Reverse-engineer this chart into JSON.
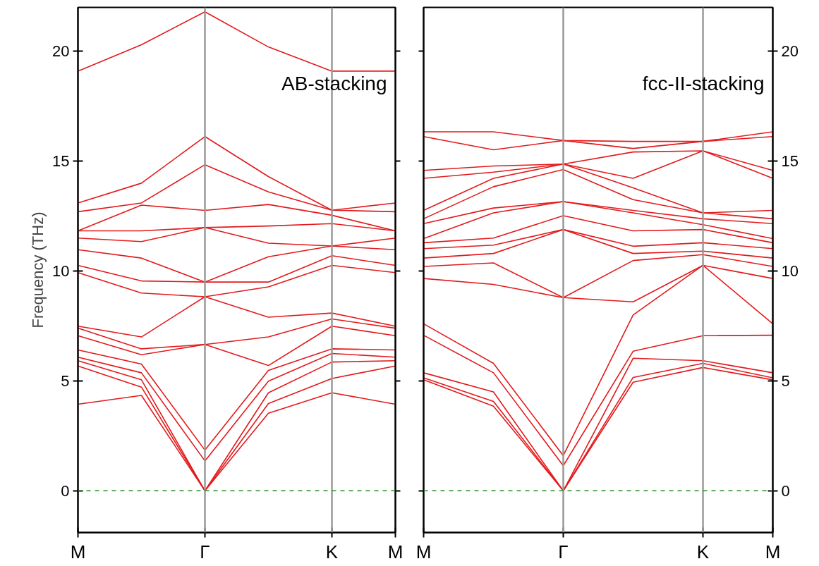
{
  "chart_data": [
    {
      "type": "line",
      "ylabel": "Frequency (THz)",
      "annotations": [
        "AB-stacking"
      ],
      "categories": [
        "M",
        null,
        "Γ",
        null,
        "K",
        "M"
      ],
      "ylim": [
        -1.9,
        22
      ],
      "yticks": [
        0,
        5,
        10,
        15,
        20
      ],
      "line_style": "solid",
      "ref_lines": [
        {
          "axis": "x",
          "value": "Γ",
          "color": "#999999",
          "line_style": "solid"
        },
        {
          "axis": "x",
          "value": "K",
          "color": "#999999",
          "line_style": "solid"
        },
        {
          "axis": "y",
          "value": 0,
          "color": "#228b22",
          "line_style": "dashed"
        }
      ],
      "series": [
        {
          "color": "#e31a1c",
          "values": [
            3.94,
            4.34,
            0,
            3.53,
            4.46,
            3.94
          ]
        },
        {
          "color": "#e31a1c",
          "values": [
            5.68,
            4.72,
            0,
            3.97,
            5.11,
            5.68
          ]
        },
        {
          "color": "#e31a1c",
          "values": [
            5.92,
            5.05,
            0,
            4.46,
            5.86,
            5.92
          ]
        },
        {
          "color": "#e31a1c",
          "values": [
            6.08,
            5.37,
            1.36,
            4.99,
            6.25,
            6.08
          ]
        },
        {
          "color": "#e31a1c",
          "values": [
            6.41,
            5.77,
            1.85,
            5.48,
            6.46,
            6.41
          ]
        },
        {
          "color": "#e31a1c",
          "values": [
            7.06,
            6.19,
            6.66,
            5.7,
            7.49,
            7.06
          ]
        },
        {
          "color": "#e31a1c",
          "values": [
            7.4,
            6.46,
            6.66,
            7.0,
            7.82,
            7.4
          ]
        },
        {
          "color": "#e31a1c",
          "values": [
            7.49,
            7.0,
            8.83,
            7.9,
            8.09,
            7.49
          ]
        },
        {
          "color": "#e31a1c",
          "values": [
            9.93,
            9.0,
            8.83,
            9.28,
            10.26,
            9.93
          ]
        },
        {
          "color": "#e31a1c",
          "values": [
            10.26,
            9.55,
            9.5,
            9.5,
            10.7,
            10.26
          ]
        },
        {
          "color": "#e31a1c",
          "values": [
            10.97,
            10.59,
            9.5,
            10.65,
            11.14,
            10.97
          ]
        },
        {
          "color": "#e31a1c",
          "values": [
            11.5,
            11.34,
            11.98,
            11.27,
            11.14,
            11.5
          ]
        },
        {
          "color": "#e31a1c",
          "values": [
            11.83,
            11.83,
            11.98,
            12.05,
            12.16,
            11.83
          ]
        },
        {
          "color": "#e31a1c",
          "values": [
            11.83,
            13.0,
            12.76,
            13.03,
            12.54,
            11.83
          ]
        },
        {
          "color": "#e31a1c",
          "values": [
            12.7,
            13.1,
            14.84,
            13.6,
            12.77,
            12.7
          ]
        },
        {
          "color": "#e31a1c",
          "values": [
            13.1,
            14.0,
            16.12,
            14.3,
            12.77,
            13.1
          ]
        },
        {
          "color": "#e31a1c",
          "values": [
            19.1,
            20.3,
            21.8,
            20.2,
            19.1,
            19.1
          ]
        }
      ]
    },
    {
      "type": "line",
      "annotations": [
        "fcc-II-stacking"
      ],
      "categories": [
        "M",
        null,
        "Γ",
        null,
        "K",
        "M"
      ],
      "y2lim": [
        -1.9,
        22
      ],
      "y2ticks": [
        0,
        5,
        10,
        15,
        20
      ],
      "line_style": "solid",
      "ref_lines": [
        {
          "axis": "x",
          "value": "Γ",
          "color": "#999999",
          "line_style": "solid"
        },
        {
          "axis": "x",
          "value": "K",
          "color": "#999999",
          "line_style": "solid"
        },
        {
          "axis": "y2",
          "value": 0,
          "color": "#228b22",
          "line_style": "dashed"
        }
      ],
      "series": [
        {
          "axis": "y2",
          "color": "#e31a1c",
          "values": [
            5.05,
            3.85,
            0,
            4.94,
            5.61,
            5.05
          ]
        },
        {
          "axis": "y2",
          "color": "#e31a1c",
          "values": [
            5.14,
            4.07,
            0,
            5.16,
            5.8,
            5.14
          ]
        },
        {
          "axis": "y2",
          "color": "#e31a1c",
          "values": [
            5.37,
            4.5,
            0,
            6.03,
            5.92,
            5.37
          ]
        },
        {
          "axis": "y2",
          "color": "#e31a1c",
          "values": [
            7.08,
            5.37,
            1.14,
            6.35,
            7.06,
            7.08
          ]
        },
        {
          "axis": "y2",
          "color": "#e31a1c",
          "values": [
            7.6,
            5.8,
            1.6,
            8.0,
            10.26,
            7.6
          ]
        },
        {
          "axis": "y2",
          "color": "#e31a1c",
          "values": [
            9.66,
            9.39,
            8.79,
            8.6,
            10.26,
            9.66
          ]
        },
        {
          "axis": "y2",
          "color": "#e31a1c",
          "values": [
            10.21,
            10.37,
            8.79,
            10.48,
            10.75,
            10.21
          ]
        },
        {
          "axis": "y2",
          "color": "#e31a1c",
          "values": [
            10.59,
            10.8,
            11.89,
            10.8,
            10.91,
            10.59
          ]
        },
        {
          "axis": "y2",
          "color": "#e31a1c",
          "values": [
            11.02,
            11.18,
            11.89,
            11.13,
            11.29,
            11.02
          ]
        },
        {
          "axis": "y2",
          "color": "#e31a1c",
          "values": [
            11.29,
            11.5,
            12.52,
            11.83,
            11.89,
            11.29
          ]
        },
        {
          "axis": "y2",
          "color": "#e31a1c",
          "values": [
            11.48,
            12.65,
            13.16,
            12.65,
            12.11,
            11.48
          ]
        },
        {
          "axis": "y2",
          "color": "#e31a1c",
          "values": [
            12.16,
            12.87,
            13.16,
            12.76,
            12.38,
            12.16
          ]
        },
        {
          "axis": "y2",
          "color": "#e31a1c",
          "values": [
            12.38,
            13.84,
            14.62,
            13.25,
            12.65,
            12.38
          ]
        },
        {
          "axis": "y2",
          "color": "#e31a1c",
          "values": [
            12.76,
            14.22,
            14.87,
            13.79,
            12.65,
            12.76
          ]
        },
        {
          "axis": "y2",
          "color": "#e31a1c",
          "values": [
            14.22,
            14.5,
            14.87,
            14.22,
            15.47,
            14.22
          ]
        },
        {
          "axis": "y2",
          "color": "#e31a1c",
          "values": [
            14.58,
            14.78,
            14.87,
            15.42,
            15.47,
            14.58
          ]
        },
        {
          "axis": "y2",
          "color": "#e31a1c",
          "values": [
            16.12,
            15.52,
            15.94,
            15.58,
            15.9,
            16.12
          ]
        },
        {
          "axis": "y2",
          "color": "#e31a1c",
          "values": [
            16.34,
            16.34,
            15.94,
            15.9,
            15.9,
            16.34
          ]
        }
      ]
    }
  ]
}
